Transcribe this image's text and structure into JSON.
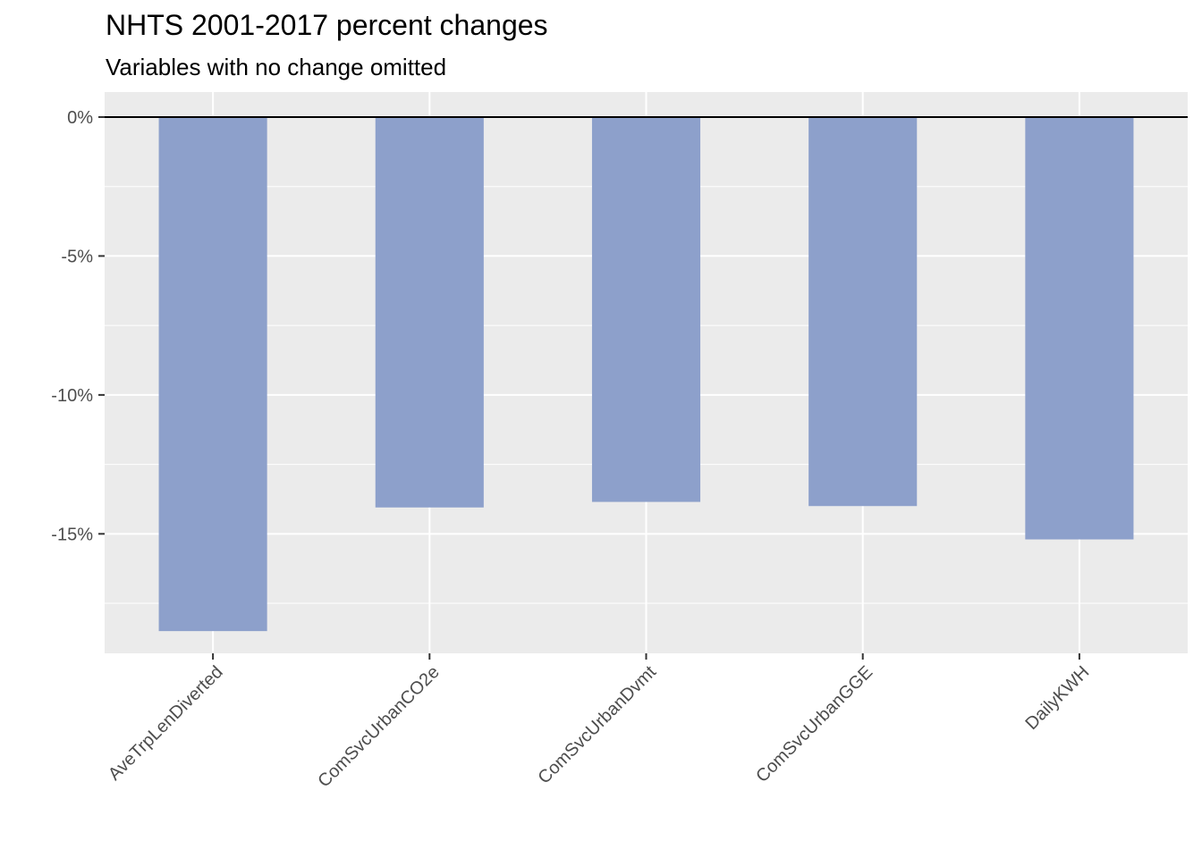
{
  "chart_data": {
    "type": "bar",
    "title": "NHTS 2001-2017 percent changes",
    "subtitle": "Variables with no change omitted",
    "xlabel": "",
    "ylabel": "",
    "categories": [
      "AveTrpLenDiverted",
      "ComSvcUrbanCO2e",
      "ComSvcUrbanDvmt",
      "ComSvcUrbanGGE",
      "DailyKWH"
    ],
    "values": [
      -18.5,
      -14.05,
      -13.85,
      -14.0,
      -15.2
    ],
    "ylim": [
      -19.3,
      0.9
    ],
    "yticks": [
      0,
      -5,
      -10,
      -15
    ],
    "ytick_labels": [
      "0%",
      "-5%",
      "-10%",
      "-15%"
    ],
    "grid": true,
    "zero_line": true,
    "colors": {
      "bar": "#8da0cb",
      "panel": "#ebebeb",
      "grid": "#ffffff",
      "zero_line": "#000000",
      "tick_text": "#4d4d4d"
    }
  }
}
